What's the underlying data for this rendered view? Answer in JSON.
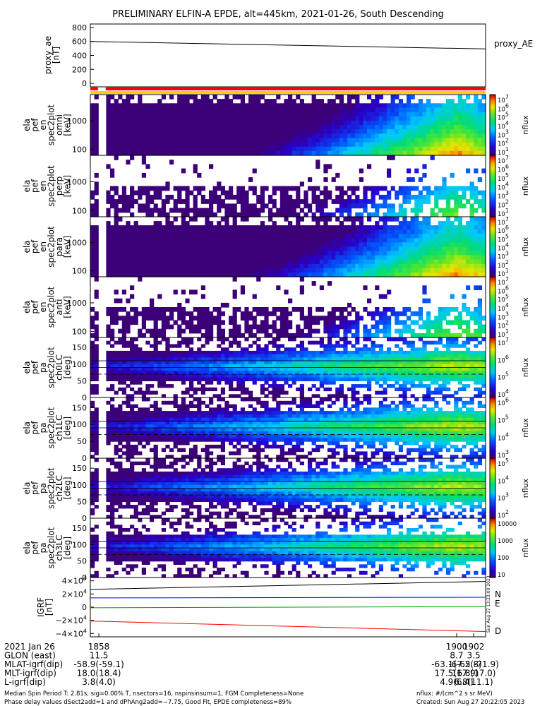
{
  "title": "PRELIMINARY ELFIN-A EPDE, alt=445km, 2021-01-26, South Descending",
  "colors": {
    "gap_marker": "#ff0000",
    "gap_bar": "#ffd000",
    "N": "#0000ff",
    "E": "#00a000",
    "D": "#ff0000",
    "frame": "#000000"
  },
  "chart_data": [
    {
      "type": "line",
      "name": "proxy_ae",
      "ylabel": [
        "proxy_ae",
        "[nT]"
      ],
      "yticks": [
        "800",
        "600",
        "400",
        "200",
        "0"
      ],
      "ylim": [
        -50,
        850
      ],
      "series": [
        {
          "name": "proxy_AE",
          "color": "#000000",
          "x": [
            1857,
            1903.4
          ],
          "values": [
            600,
            493
          ]
        }
      ]
    },
    {
      "type": "heatmap",
      "ylabel": [
        "ela",
        "pef",
        "en",
        "spec2plot",
        "omni",
        "[keV]"
      ],
      "yticks": [
        "1000",
        "100"
      ],
      "ylog": true,
      "colorbar": {
        "label": "nflux",
        "ticks": [
          "10^7",
          "10^6",
          "10^5",
          "10^4",
          "10^3",
          "10^2",
          "10^1"
        ]
      }
    },
    {
      "type": "heatmap",
      "ylabel": [
        "ela",
        "pef",
        "en",
        "spec2plot",
        "perp",
        "[keV]"
      ],
      "yticks": [
        "1000",
        "100"
      ],
      "ylog": true,
      "colorbar": {
        "label": "nflux",
        "ticks": [
          "10^7",
          "10^6",
          "10^5",
          "10^4",
          "10^3",
          "10^2",
          "10^1"
        ]
      }
    },
    {
      "type": "heatmap",
      "ylabel": [
        "ela",
        "pef",
        "en",
        "spec2plot",
        "para",
        "[keV]"
      ],
      "yticks": [
        "1000",
        "100"
      ],
      "ylog": true,
      "colorbar": {
        "label": "nflux",
        "ticks": [
          "10^7",
          "10^6",
          "10^5",
          "10^4",
          "10^3",
          "10^2",
          "10^1"
        ]
      }
    },
    {
      "type": "heatmap",
      "ylabel": [
        "ela",
        "pef",
        "en",
        "spec2plot",
        "anti",
        "[keV]"
      ],
      "yticks": [
        "1000",
        "100"
      ],
      "ylog": true,
      "colorbar": {
        "label": "nflux",
        "ticks": [
          "10^7",
          "10^6",
          "10^5",
          "10^4",
          "10^3",
          "10^2",
          "10^1"
        ]
      }
    },
    {
      "type": "heatmap",
      "ylabel": [
        "ela",
        "pef",
        "pa",
        "spec2plot",
        "ch0LC",
        "[deg]"
      ],
      "yticks": [
        "150",
        "100",
        "50",
        "0"
      ],
      "colorbar": {
        "label": "nflux",
        "ticks": [
          "10^7",
          "10^6",
          "10^5",
          "10^4"
        ]
      }
    },
    {
      "type": "heatmap",
      "ylabel": [
        "ela",
        "pef",
        "pa",
        "spec2plot",
        "ch1LC",
        "[deg]"
      ],
      "yticks": [
        "150",
        "100",
        "50",
        "0"
      ],
      "colorbar": {
        "label": "nflux",
        "ticks": [
          "10^6",
          "10^5",
          "10^4",
          "10^3"
        ]
      }
    },
    {
      "type": "heatmap",
      "ylabel": [
        "ela",
        "pef",
        "pa",
        "spec2plot",
        "ch2LC",
        "[deg]"
      ],
      "yticks": [
        "150",
        "100",
        "50",
        "0"
      ],
      "colorbar": {
        "label": "nflux",
        "ticks": [
          "10^5",
          "10^4",
          "10^3",
          "10^2"
        ]
      }
    },
    {
      "type": "heatmap",
      "ylabel": [
        "ela",
        "pef",
        "pa",
        "spec2plot",
        "ch3LC",
        "[deg]"
      ],
      "yticks": [
        "150",
        "100",
        "50",
        "0"
      ],
      "colorbar": {
        "label": "nflux",
        "ticks": [
          "10000",
          "1000",
          "100",
          "10"
        ]
      }
    },
    {
      "type": "line",
      "ylabel": [
        "IGRF",
        "[nT]"
      ],
      "yticks": [
        "4×10^4",
        "2×10^4",
        "0",
        "−2×10^4",
        "−4×10^4"
      ],
      "ylim": [
        -45000,
        45000
      ],
      "series": [
        {
          "name": "N",
          "color": "#0000ff",
          "x": [
            1857,
            1903.4
          ],
          "values": [
            14000,
            15000
          ]
        },
        {
          "name": "E",
          "color": "#00a000",
          "x": [
            1857,
            1903.4
          ],
          "values": [
            -1000,
            800
          ]
        },
        {
          "name": "D",
          "color": "#ff0000",
          "x": [
            1857,
            1903.4
          ],
          "values": [
            -21000,
            -37000
          ]
        },
        {
          "name": "",
          "color": "#000000",
          "x": [
            1857,
            1903.4
          ],
          "values": [
            27000,
            39000
          ]
        }
      ]
    }
  ],
  "xaxis": {
    "ticks": [
      "1858",
      "1900",
      "1902"
    ],
    "rows": [
      {
        "label": "2021 Jan 26",
        "vals": [
          "1858",
          "1900",
          "1902"
        ]
      },
      {
        "label": "GLON (east)",
        "vals": [
          "11.5",
          "8.7",
          "3.5"
        ]
      },
      {
        "label": "MLAT-igrf(dip)",
        "vals": [
          "-58.9(-59.1)",
          "-63.1(-65.8)",
          "-67.2(-71.9)"
        ]
      },
      {
        "label": "MLT-igrf(dip)",
        "vals": [
          "18.0(18.4)",
          "17.5(17.9)",
          "16.8(17.0)"
        ]
      },
      {
        "label": "L-igrf(dip)",
        "vals": [
          "3.8(4.0)",
          "4.9(6.4)",
          "6.8(11.1)"
        ]
      }
    ]
  },
  "footer": {
    "line1": "Median Spin Period T: 2.81s, sig=0.00% T, nsectors=16, nspinsinsum=1, FGM Completeness=None",
    "line2": "Phase delay values dSect2add=1 and dPhAng2add=−7.75, Good Fit, EPDE completeness=89%",
    "units": "nflux: #/(cm^2 s sr MeV)",
    "created": "Created: Sun Aug 27 20:22:05 2023",
    "side": "Sun Aug 27 13:23:00 2023"
  }
}
